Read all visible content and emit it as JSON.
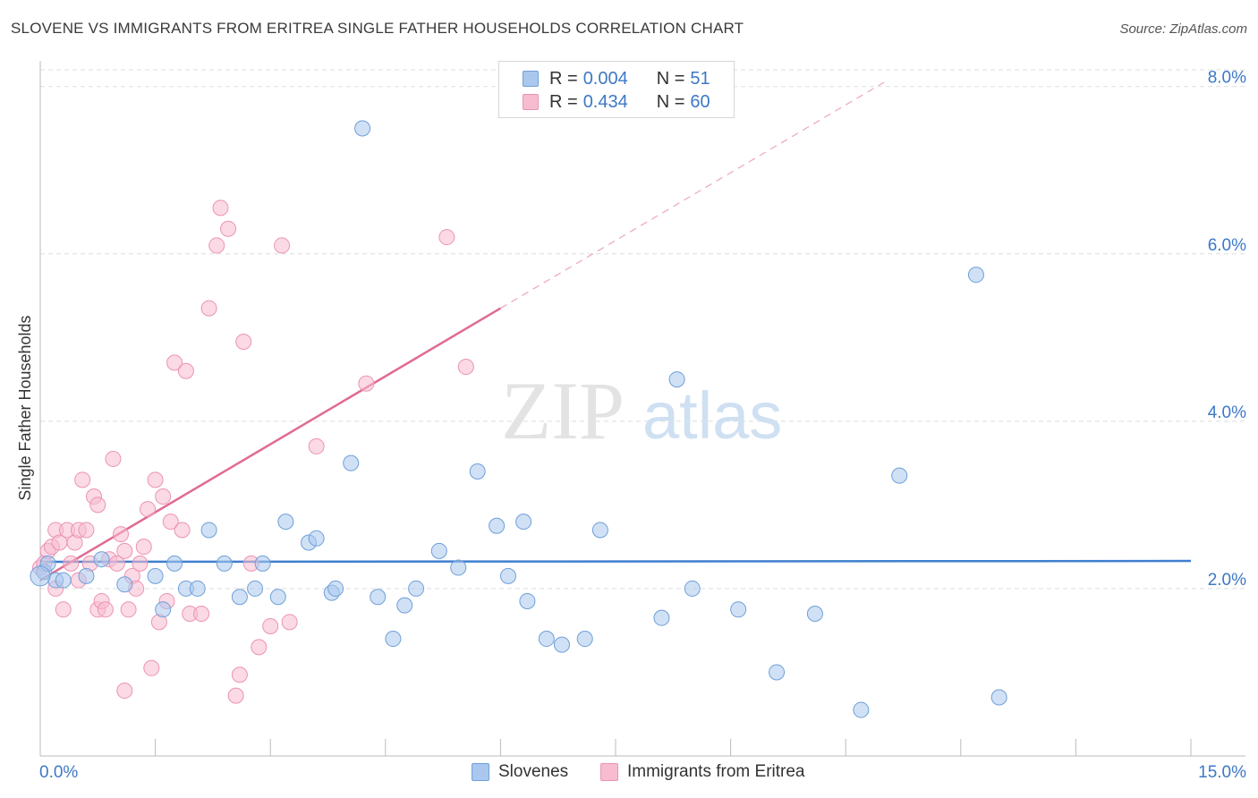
{
  "title": "SLOVENE VS IMMIGRANTS FROM ERITREA SINGLE FATHER HOUSEHOLDS CORRELATION CHART",
  "source": "Source: ZipAtlas.com",
  "watermark": {
    "zip": "ZIP",
    "atlas": "atlas"
  },
  "legend": {
    "rows": [
      {
        "r_label": "R =",
        "r_value": "0.004",
        "n_label": "N =",
        "n_value": "51"
      },
      {
        "r_label": "R =",
        "r_value": "0.434",
        "n_label": "N =",
        "n_value": "60"
      }
    ]
  },
  "colors": {
    "slovenes_fill": "#aac8ee",
    "slovenes_stroke": "#6f9fd8",
    "slovenes_line": "#3f7fcf",
    "eritrea_fill": "#f7bcd0",
    "eritrea_stroke": "#ec93b3",
    "eritrea_line": "#e06a93",
    "tick_label": "#3d78c6",
    "grid": "#dddddd"
  },
  "chart_data": {
    "type": "scatter",
    "title": "SLOVENE VS IMMIGRANTS FROM ERITREA SINGLE FATHER HOUSEHOLDS CORRELATION CHART",
    "xlabel": "",
    "ylabel": "Single Father Households",
    "xlim": [
      0,
      15
    ],
    "ylim": [
      0,
      8.2
    ],
    "x_tick_labels": [
      "0.0%",
      "15.0%"
    ],
    "y_ticks": [
      2.0,
      4.0,
      6.0,
      8.0
    ],
    "y_tick_labels": [
      "2.0%",
      "4.0%",
      "6.0%",
      "8.0%"
    ],
    "grid": true,
    "legend_position": "top-center",
    "series": [
      {
        "name": "Slovenes",
        "color": "#aac8ee",
        "regression": {
          "x": [
            0,
            15
          ],
          "y": [
            2.32,
            2.33
          ],
          "dashed_extension": false
        },
        "points": [
          [
            0.05,
            2.2
          ],
          [
            0.1,
            2.3
          ],
          [
            0.2,
            2.1
          ],
          [
            0.3,
            2.1
          ],
          [
            0.6,
            2.15
          ],
          [
            0.8,
            2.35
          ],
          [
            1.1,
            2.05
          ],
          [
            1.5,
            2.15
          ],
          [
            1.6,
            1.75
          ],
          [
            1.75,
            2.3
          ],
          [
            1.9,
            2.0
          ],
          [
            2.05,
            2.0
          ],
          [
            2.2,
            2.7
          ],
          [
            2.4,
            2.3
          ],
          [
            2.6,
            1.9
          ],
          [
            2.8,
            2.0
          ],
          [
            2.9,
            2.3
          ],
          [
            3.1,
            1.9
          ],
          [
            3.2,
            2.8
          ],
          [
            3.5,
            2.55
          ],
          [
            3.6,
            2.6
          ],
          [
            3.8,
            1.95
          ],
          [
            3.85,
            2.0
          ],
          [
            4.05,
            3.5
          ],
          [
            4.2,
            7.5
          ],
          [
            4.4,
            1.9
          ],
          [
            4.6,
            1.4
          ],
          [
            4.75,
            1.8
          ],
          [
            4.9,
            2.0
          ],
          [
            5.2,
            2.45
          ],
          [
            5.45,
            2.25
          ],
          [
            5.7,
            3.4
          ],
          [
            5.95,
            2.75
          ],
          [
            6.1,
            2.15
          ],
          [
            6.3,
            2.8
          ],
          [
            6.35,
            1.85
          ],
          [
            6.6,
            1.4
          ],
          [
            6.8,
            1.33
          ],
          [
            7.1,
            1.4
          ],
          [
            7.3,
            2.7
          ],
          [
            8.1,
            1.65
          ],
          [
            8.3,
            4.5
          ],
          [
            8.5,
            2.0
          ],
          [
            9.1,
            1.75
          ],
          [
            9.6,
            1.0
          ],
          [
            10.1,
            1.7
          ],
          [
            10.7,
            0.55
          ],
          [
            11.2,
            3.35
          ],
          [
            12.2,
            5.75
          ],
          [
            12.5,
            0.7
          ],
          [
            0.0,
            2.15
          ]
        ]
      },
      {
        "name": "Immigrants from Eritrea",
        "color": "#f7bcd0",
        "regression": {
          "x": [
            0,
            6
          ],
          "y": [
            2.1,
            5.35
          ],
          "dashed_extension": true,
          "dashed_to": [
            11,
            8.05
          ]
        },
        "points": [
          [
            0.0,
            2.25
          ],
          [
            0.05,
            2.3
          ],
          [
            0.1,
            2.45
          ],
          [
            0.15,
            2.5
          ],
          [
            0.2,
            2.7
          ],
          [
            0.25,
            2.55
          ],
          [
            0.3,
            1.75
          ],
          [
            0.35,
            2.7
          ],
          [
            0.4,
            2.3
          ],
          [
            0.45,
            2.55
          ],
          [
            0.5,
            2.7
          ],
          [
            0.5,
            2.1
          ],
          [
            0.55,
            3.3
          ],
          [
            0.65,
            2.3
          ],
          [
            0.7,
            3.1
          ],
          [
            0.75,
            3.0
          ],
          [
            0.75,
            1.75
          ],
          [
            0.8,
            1.85
          ],
          [
            0.85,
            1.75
          ],
          [
            0.9,
            2.35
          ],
          [
            0.95,
            3.55
          ],
          [
            1.0,
            2.3
          ],
          [
            1.05,
            2.65
          ],
          [
            1.1,
            2.45
          ],
          [
            1.15,
            1.75
          ],
          [
            1.2,
            2.15
          ],
          [
            1.25,
            2.0
          ],
          [
            1.3,
            2.3
          ],
          [
            1.35,
            2.5
          ],
          [
            1.4,
            2.95
          ],
          [
            1.45,
            1.05
          ],
          [
            1.5,
            3.3
          ],
          [
            1.55,
            1.6
          ],
          [
            1.6,
            3.1
          ],
          [
            1.65,
            1.85
          ],
          [
            1.7,
            2.8
          ],
          [
            1.75,
            4.7
          ],
          [
            1.85,
            2.7
          ],
          [
            1.9,
            4.6
          ],
          [
            1.95,
            1.7
          ],
          [
            2.1,
            1.7
          ],
          [
            2.2,
            5.35
          ],
          [
            2.3,
            6.1
          ],
          [
            2.35,
            6.55
          ],
          [
            2.45,
            6.3
          ],
          [
            2.55,
            0.72
          ],
          [
            2.6,
            0.97
          ],
          [
            2.65,
            4.95
          ],
          [
            2.75,
            2.3
          ],
          [
            2.85,
            1.3
          ],
          [
            3.0,
            1.55
          ],
          [
            3.15,
            6.1
          ],
          [
            3.25,
            1.6
          ],
          [
            3.6,
            3.7
          ],
          [
            4.25,
            4.45
          ],
          [
            5.3,
            6.2
          ],
          [
            5.55,
            4.65
          ],
          [
            1.1,
            0.78
          ],
          [
            0.2,
            2.0
          ],
          [
            0.6,
            2.7
          ]
        ]
      }
    ]
  },
  "bottom_legend": {
    "items": [
      {
        "label": "Slovenes"
      },
      {
        "label": "Immigrants from Eritrea"
      }
    ]
  }
}
